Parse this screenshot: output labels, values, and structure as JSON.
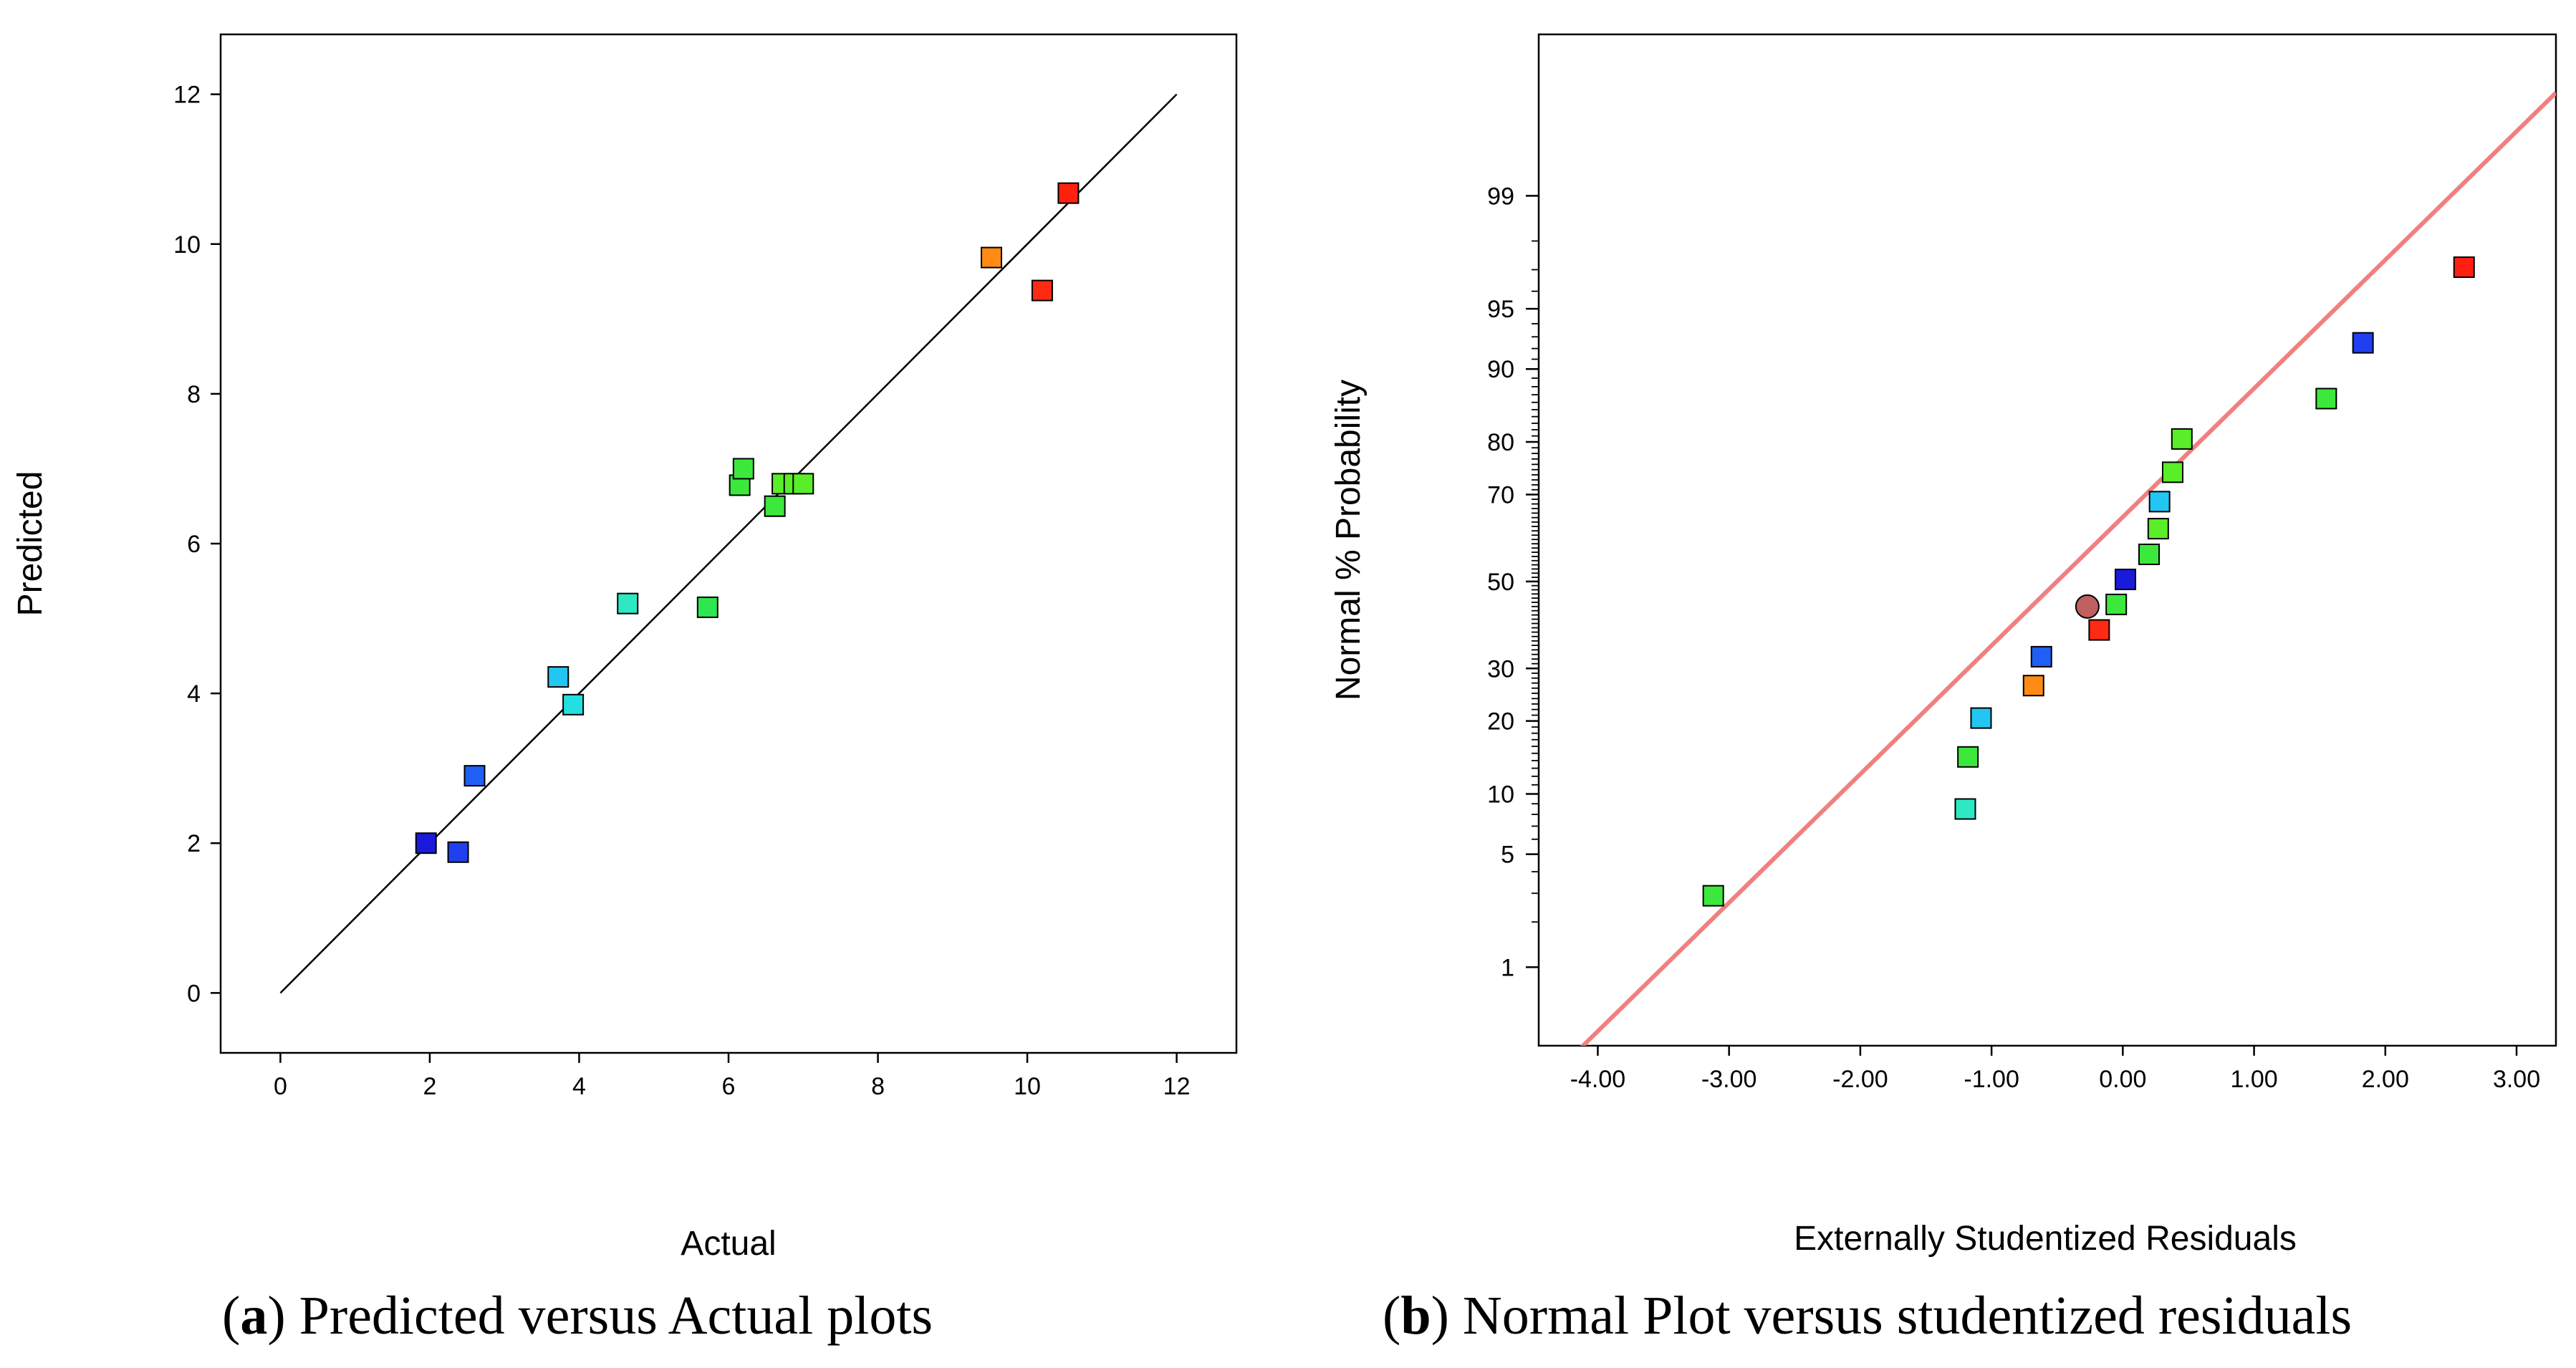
{
  "captions": [
    {
      "paren_open": "(",
      "letter": "a",
      "paren_close": ")",
      "text": " Predicted versus Actual plots"
    },
    {
      "paren_open": "(",
      "letter": "b",
      "paren_close": ")",
      "text": " Normal Plot versus studentized residuals"
    }
  ],
  "chart_data": [
    {
      "type": "scatter",
      "title": "",
      "xlabel": "Actual",
      "ylabel": "Predicted",
      "xlim": [
        -0.8,
        12.8
      ],
      "ylim": [
        -0.8,
        12.8
      ],
      "xticks": [
        0,
        2,
        4,
        6,
        8,
        10,
        12
      ],
      "yticks": [
        0,
        2,
        4,
        6,
        8,
        10,
        12
      ],
      "reference_line": {
        "x": [
          0,
          12
        ],
        "y": [
          0,
          12
        ],
        "color": "#000000"
      },
      "points": [
        {
          "x": 1.95,
          "y": 2.0,
          "color": "#1a1adc"
        },
        {
          "x": 2.38,
          "y": 1.88,
          "color": "#1f3ff0"
        },
        {
          "x": 2.6,
          "y": 2.9,
          "color": "#1f5ff5"
        },
        {
          "x": 3.72,
          "y": 4.22,
          "color": "#22c6f2"
        },
        {
          "x": 3.92,
          "y": 3.85,
          "color": "#22e0e0"
        },
        {
          "x": 4.65,
          "y": 5.2,
          "color": "#2ee8c4"
        },
        {
          "x": 5.72,
          "y": 5.15,
          "color": "#2ee650"
        },
        {
          "x": 6.15,
          "y": 6.78,
          "color": "#3ce83c"
        },
        {
          "x": 6.2,
          "y": 7.0,
          "color": "#3ce83c"
        },
        {
          "x": 6.62,
          "y": 6.5,
          "color": "#3ce83c"
        },
        {
          "x": 6.72,
          "y": 6.8,
          "color": "#5aee28"
        },
        {
          "x": 6.88,
          "y": 6.8,
          "color": "#5aee28"
        },
        {
          "x": 7.0,
          "y": 6.8,
          "color": "#5aee28"
        },
        {
          "x": 9.52,
          "y": 9.82,
          "color": "#ff8a14"
        },
        {
          "x": 10.2,
          "y": 9.38,
          "color": "#ff2a14"
        },
        {
          "x": 10.55,
          "y": 10.68,
          "color": "#ff2010"
        }
      ]
    },
    {
      "type": "scatter",
      "title": "",
      "xlabel": "Externally Studentized Residuals",
      "ylabel": "Normal % Probability",
      "xlim": [
        -4.45,
        3.3
      ],
      "xticks": [
        -4.0,
        -3.0,
        -2.0,
        -1.0,
        0.0,
        1.0,
        2.0,
        3.0
      ],
      "xtick_labels": [
        "-4.00",
        "-3.00",
        "-2.00",
        "-1.00",
        "0.00",
        "1.00",
        "2.00",
        "3.00"
      ],
      "y_scale": "normal probability",
      "yticks": [
        1,
        5,
        10,
        20,
        30,
        50,
        70,
        80,
        90,
        95,
        99
      ],
      "ytick_labels": [
        "1",
        "5",
        "10",
        "20",
        "30",
        "50",
        "70",
        "80",
        "90",
        "95",
        "99"
      ],
      "reference_line": {
        "x": [
          -4.45,
          3.3
        ],
        "y": [
          0.11,
          99.84
        ],
        "color": "#f08080"
      },
      "points": [
        {
          "x": -3.12,
          "y": 2.9,
          "color": "#3ce83c",
          "shape": "square"
        },
        {
          "x": -1.2,
          "y": 8.5,
          "color": "#2ee8c4",
          "shape": "square"
        },
        {
          "x": -1.18,
          "y": 14.5,
          "color": "#3ce83c",
          "shape": "square"
        },
        {
          "x": -1.08,
          "y": 20.5,
          "color": "#22c6f2",
          "shape": "square"
        },
        {
          "x": -0.68,
          "y": 26.5,
          "color": "#ff8a14",
          "shape": "square"
        },
        {
          "x": -0.62,
          "y": 32.5,
          "color": "#1f5ff5",
          "shape": "square"
        },
        {
          "x": -0.27,
          "y": 44.0,
          "color": "#c06060",
          "shape": "circle"
        },
        {
          "x": -0.18,
          "y": 38.5,
          "color": "#ff2a14",
          "shape": "square"
        },
        {
          "x": -0.05,
          "y": 44.5,
          "color": "#3ce83c",
          "shape": "square"
        },
        {
          "x": 0.02,
          "y": 50.5,
          "color": "#1a1adc",
          "shape": "square"
        },
        {
          "x": 0.2,
          "y": 56.5,
          "color": "#3ce83c",
          "shape": "square"
        },
        {
          "x": 0.27,
          "y": 62.5,
          "color": "#5aee28",
          "shape": "square"
        },
        {
          "x": 0.28,
          "y": 68.5,
          "color": "#22c6f2",
          "shape": "square"
        },
        {
          "x": 0.38,
          "y": 74.5,
          "color": "#5aee28",
          "shape": "square"
        },
        {
          "x": 0.45,
          "y": 80.5,
          "color": "#5aee28",
          "shape": "square"
        },
        {
          "x": 1.55,
          "y": 86.5,
          "color": "#3ce83c",
          "shape": "square"
        },
        {
          "x": 1.83,
          "y": 92.5,
          "color": "#1f3ff0",
          "shape": "square"
        },
        {
          "x": 2.6,
          "y": 97.1,
          "color": "#ff2010",
          "shape": "square"
        }
      ]
    }
  ]
}
